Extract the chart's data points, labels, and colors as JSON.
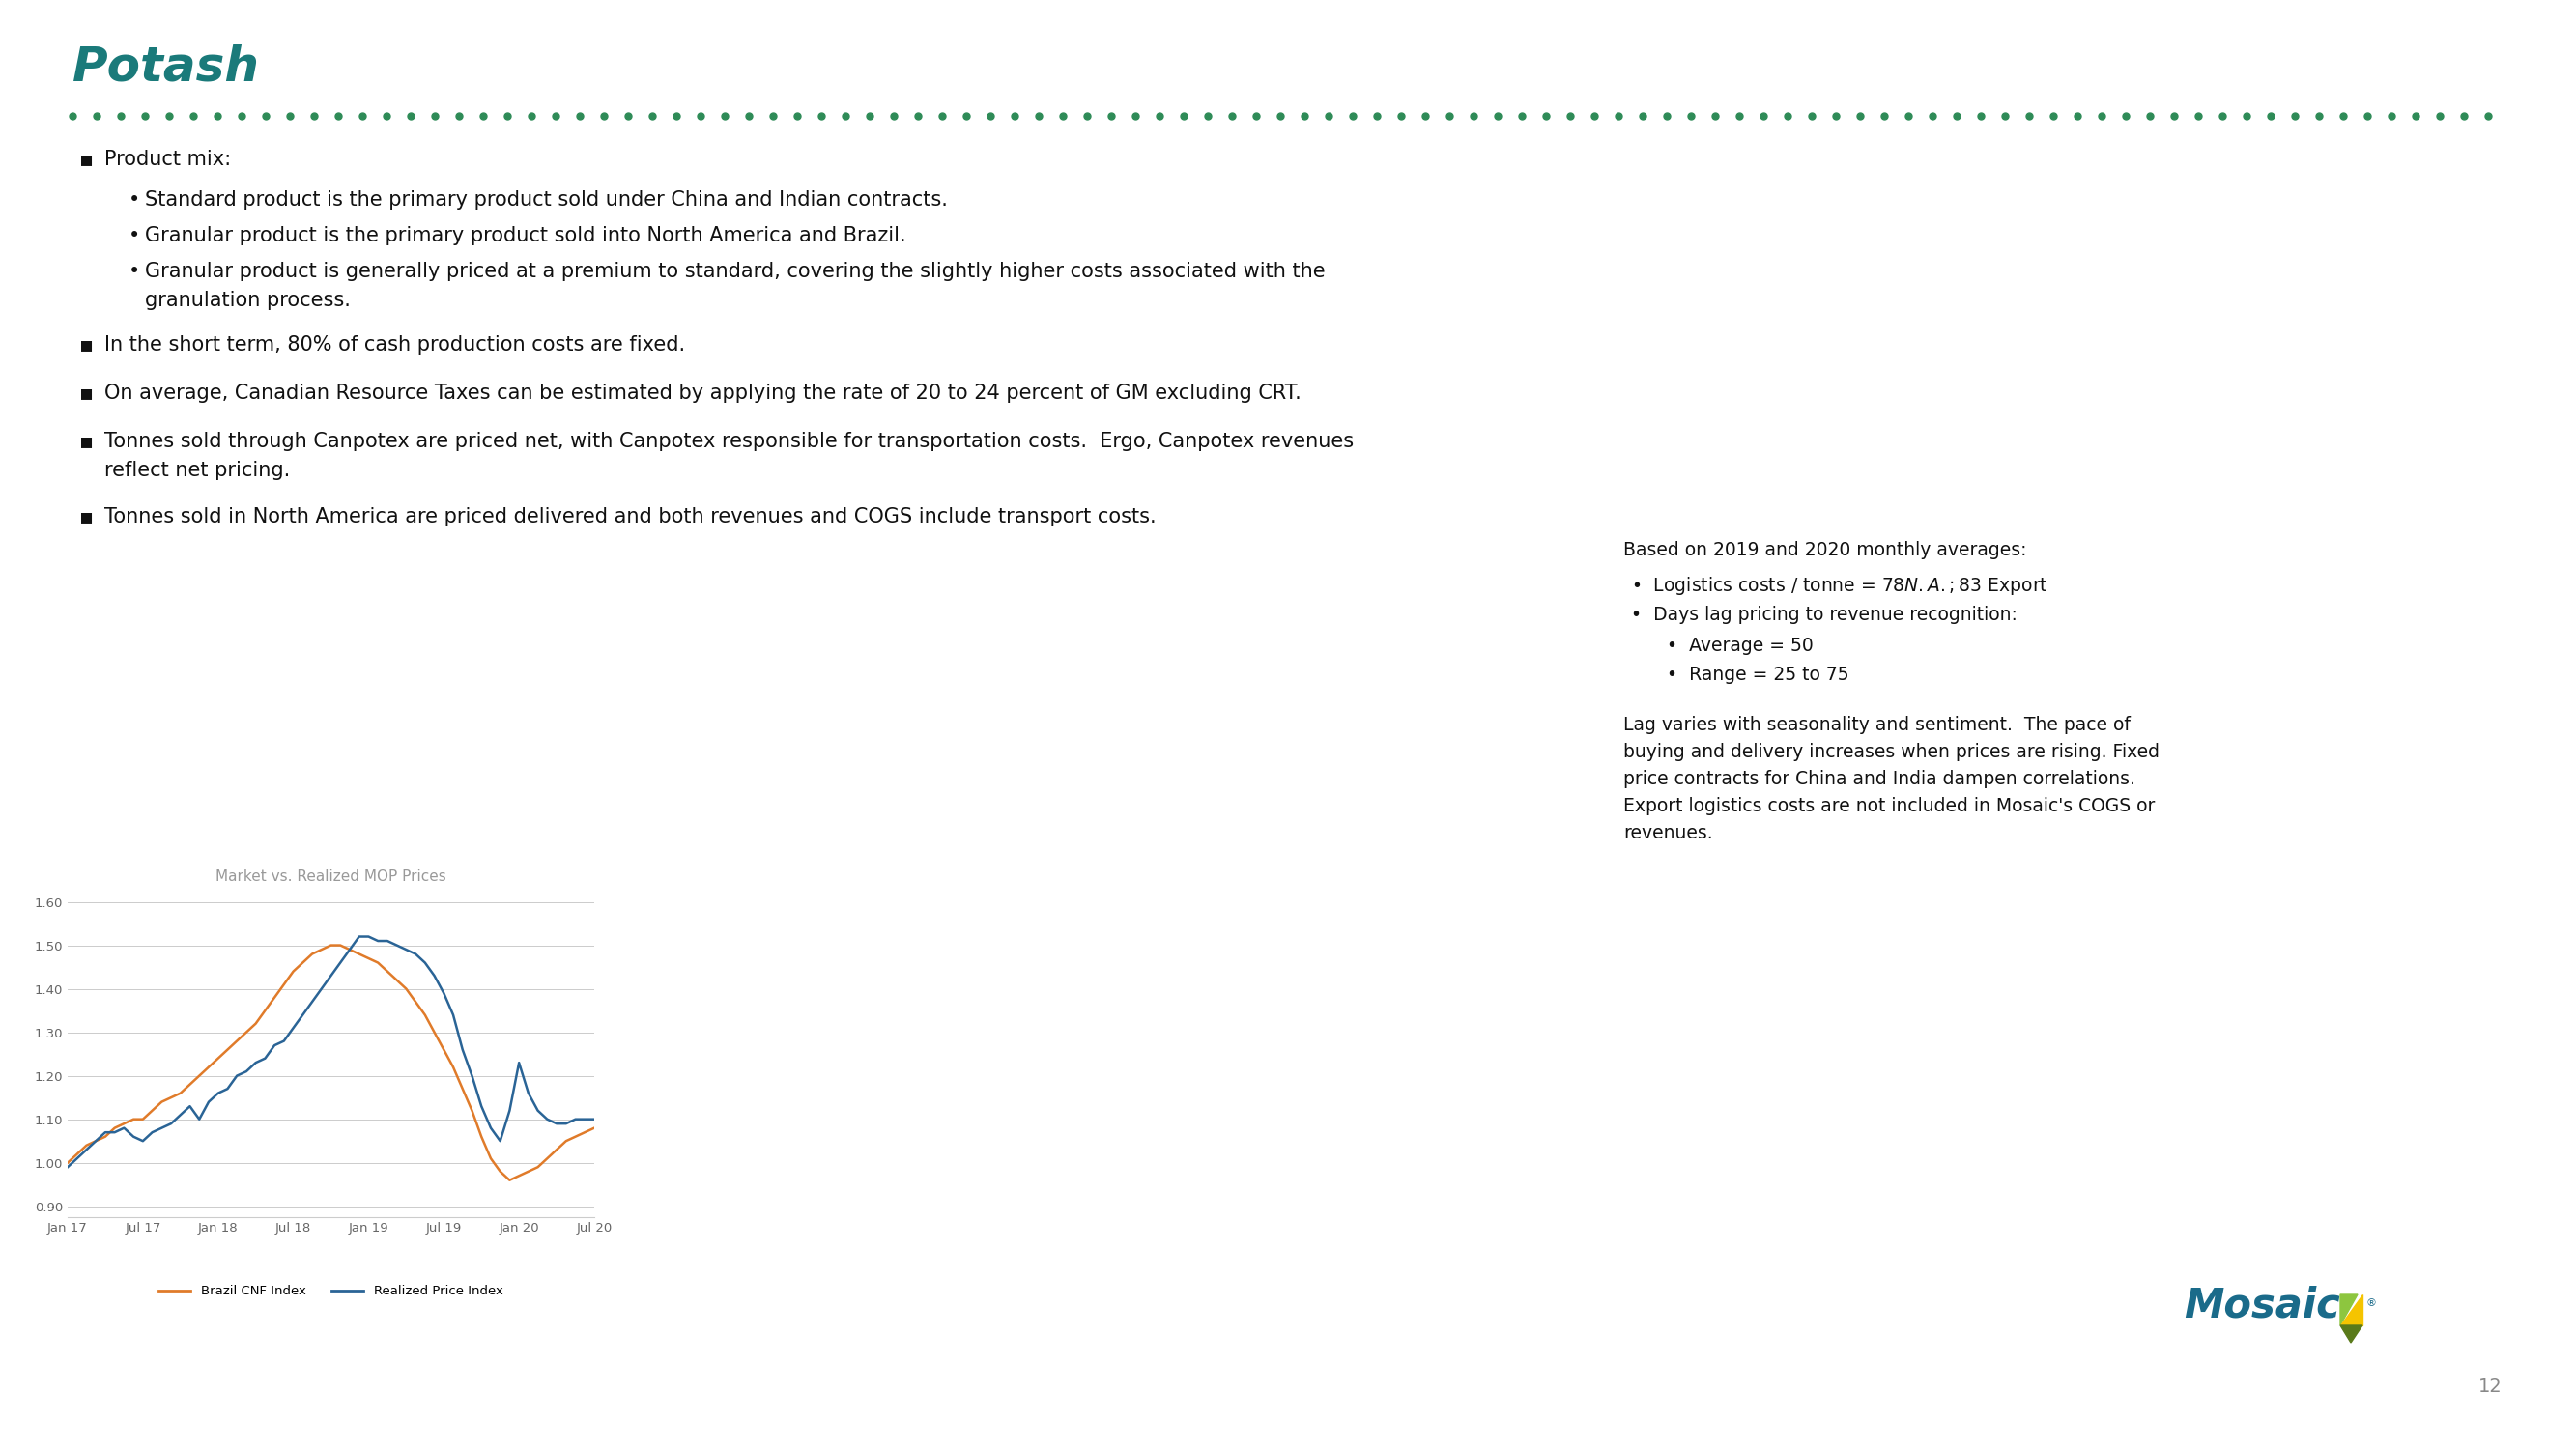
{
  "title": "Potash",
  "title_color": "#1a7a7a",
  "title_fontsize": 36,
  "background_color": "#ffffff",
  "dot_color": "#2e8b57",
  "bullet_fontsize": 15,
  "sub_bullet_fontsize": 15,
  "chart_title": "Market vs. Realized MOP Prices",
  "chart_title_color": "#999999",
  "x_labels": [
    "Jan 17",
    "Jul 17",
    "Jan 18",
    "Jul 18",
    "Jan 19",
    "Jul 19",
    "Jan 20",
    "Jul 20"
  ],
  "y_ticks": [
    0.9,
    1.0,
    1.1,
    1.2,
    1.3,
    1.4,
    1.5,
    1.6
  ],
  "y_min": 0.875,
  "y_max": 1.63,
  "brazil_color": "#e07b2a",
  "realized_color": "#2a6496",
  "legend_brazil": "Brazil CNF Index",
  "legend_realized": "Realized Price Index",
  "brazil_data": [
    1.0,
    1.02,
    1.04,
    1.05,
    1.06,
    1.08,
    1.09,
    1.1,
    1.1,
    1.12,
    1.14,
    1.15,
    1.16,
    1.18,
    1.2,
    1.22,
    1.24,
    1.26,
    1.28,
    1.3,
    1.32,
    1.35,
    1.38,
    1.41,
    1.44,
    1.46,
    1.48,
    1.49,
    1.5,
    1.5,
    1.49,
    1.48,
    1.47,
    1.46,
    1.44,
    1.42,
    1.4,
    1.37,
    1.34,
    1.3,
    1.26,
    1.22,
    1.17,
    1.12,
    1.06,
    1.01,
    0.98,
    0.96,
    0.97,
    0.98,
    0.99,
    1.01,
    1.03,
    1.05,
    1.06,
    1.07,
    1.08
  ],
  "realized_data": [
    0.99,
    1.01,
    1.03,
    1.05,
    1.07,
    1.07,
    1.08,
    1.06,
    1.05,
    1.07,
    1.08,
    1.09,
    1.11,
    1.13,
    1.1,
    1.14,
    1.16,
    1.17,
    1.2,
    1.21,
    1.23,
    1.24,
    1.27,
    1.28,
    1.31,
    1.34,
    1.37,
    1.4,
    1.43,
    1.46,
    1.49,
    1.52,
    1.52,
    1.51,
    1.51,
    1.5,
    1.49,
    1.48,
    1.46,
    1.43,
    1.39,
    1.34,
    1.26,
    1.2,
    1.13,
    1.08,
    1.05,
    1.12,
    1.23,
    1.16,
    1.12,
    1.1,
    1.09,
    1.09,
    1.1,
    1.1,
    1.1
  ],
  "right_text_title": "Based on 2019 and 2020 monthly averages:",
  "right_bullets": [
    "Logistics costs / tonne = $78 N.A.; $83 Export",
    "Days lag pricing to revenue recognition:"
  ],
  "right_sub_bullets": [
    "Average = 50",
    "Range = 25 to 75"
  ],
  "right_para_lines": [
    "Lag varies with seasonality and sentiment.  The pace of",
    "buying and delivery increases when prices are rising. Fixed",
    "price contracts for China and India dampen correlations.",
    "Export logistics costs are not included in Mosaic's COGS or",
    "revenues."
  ],
  "page_number": "12"
}
